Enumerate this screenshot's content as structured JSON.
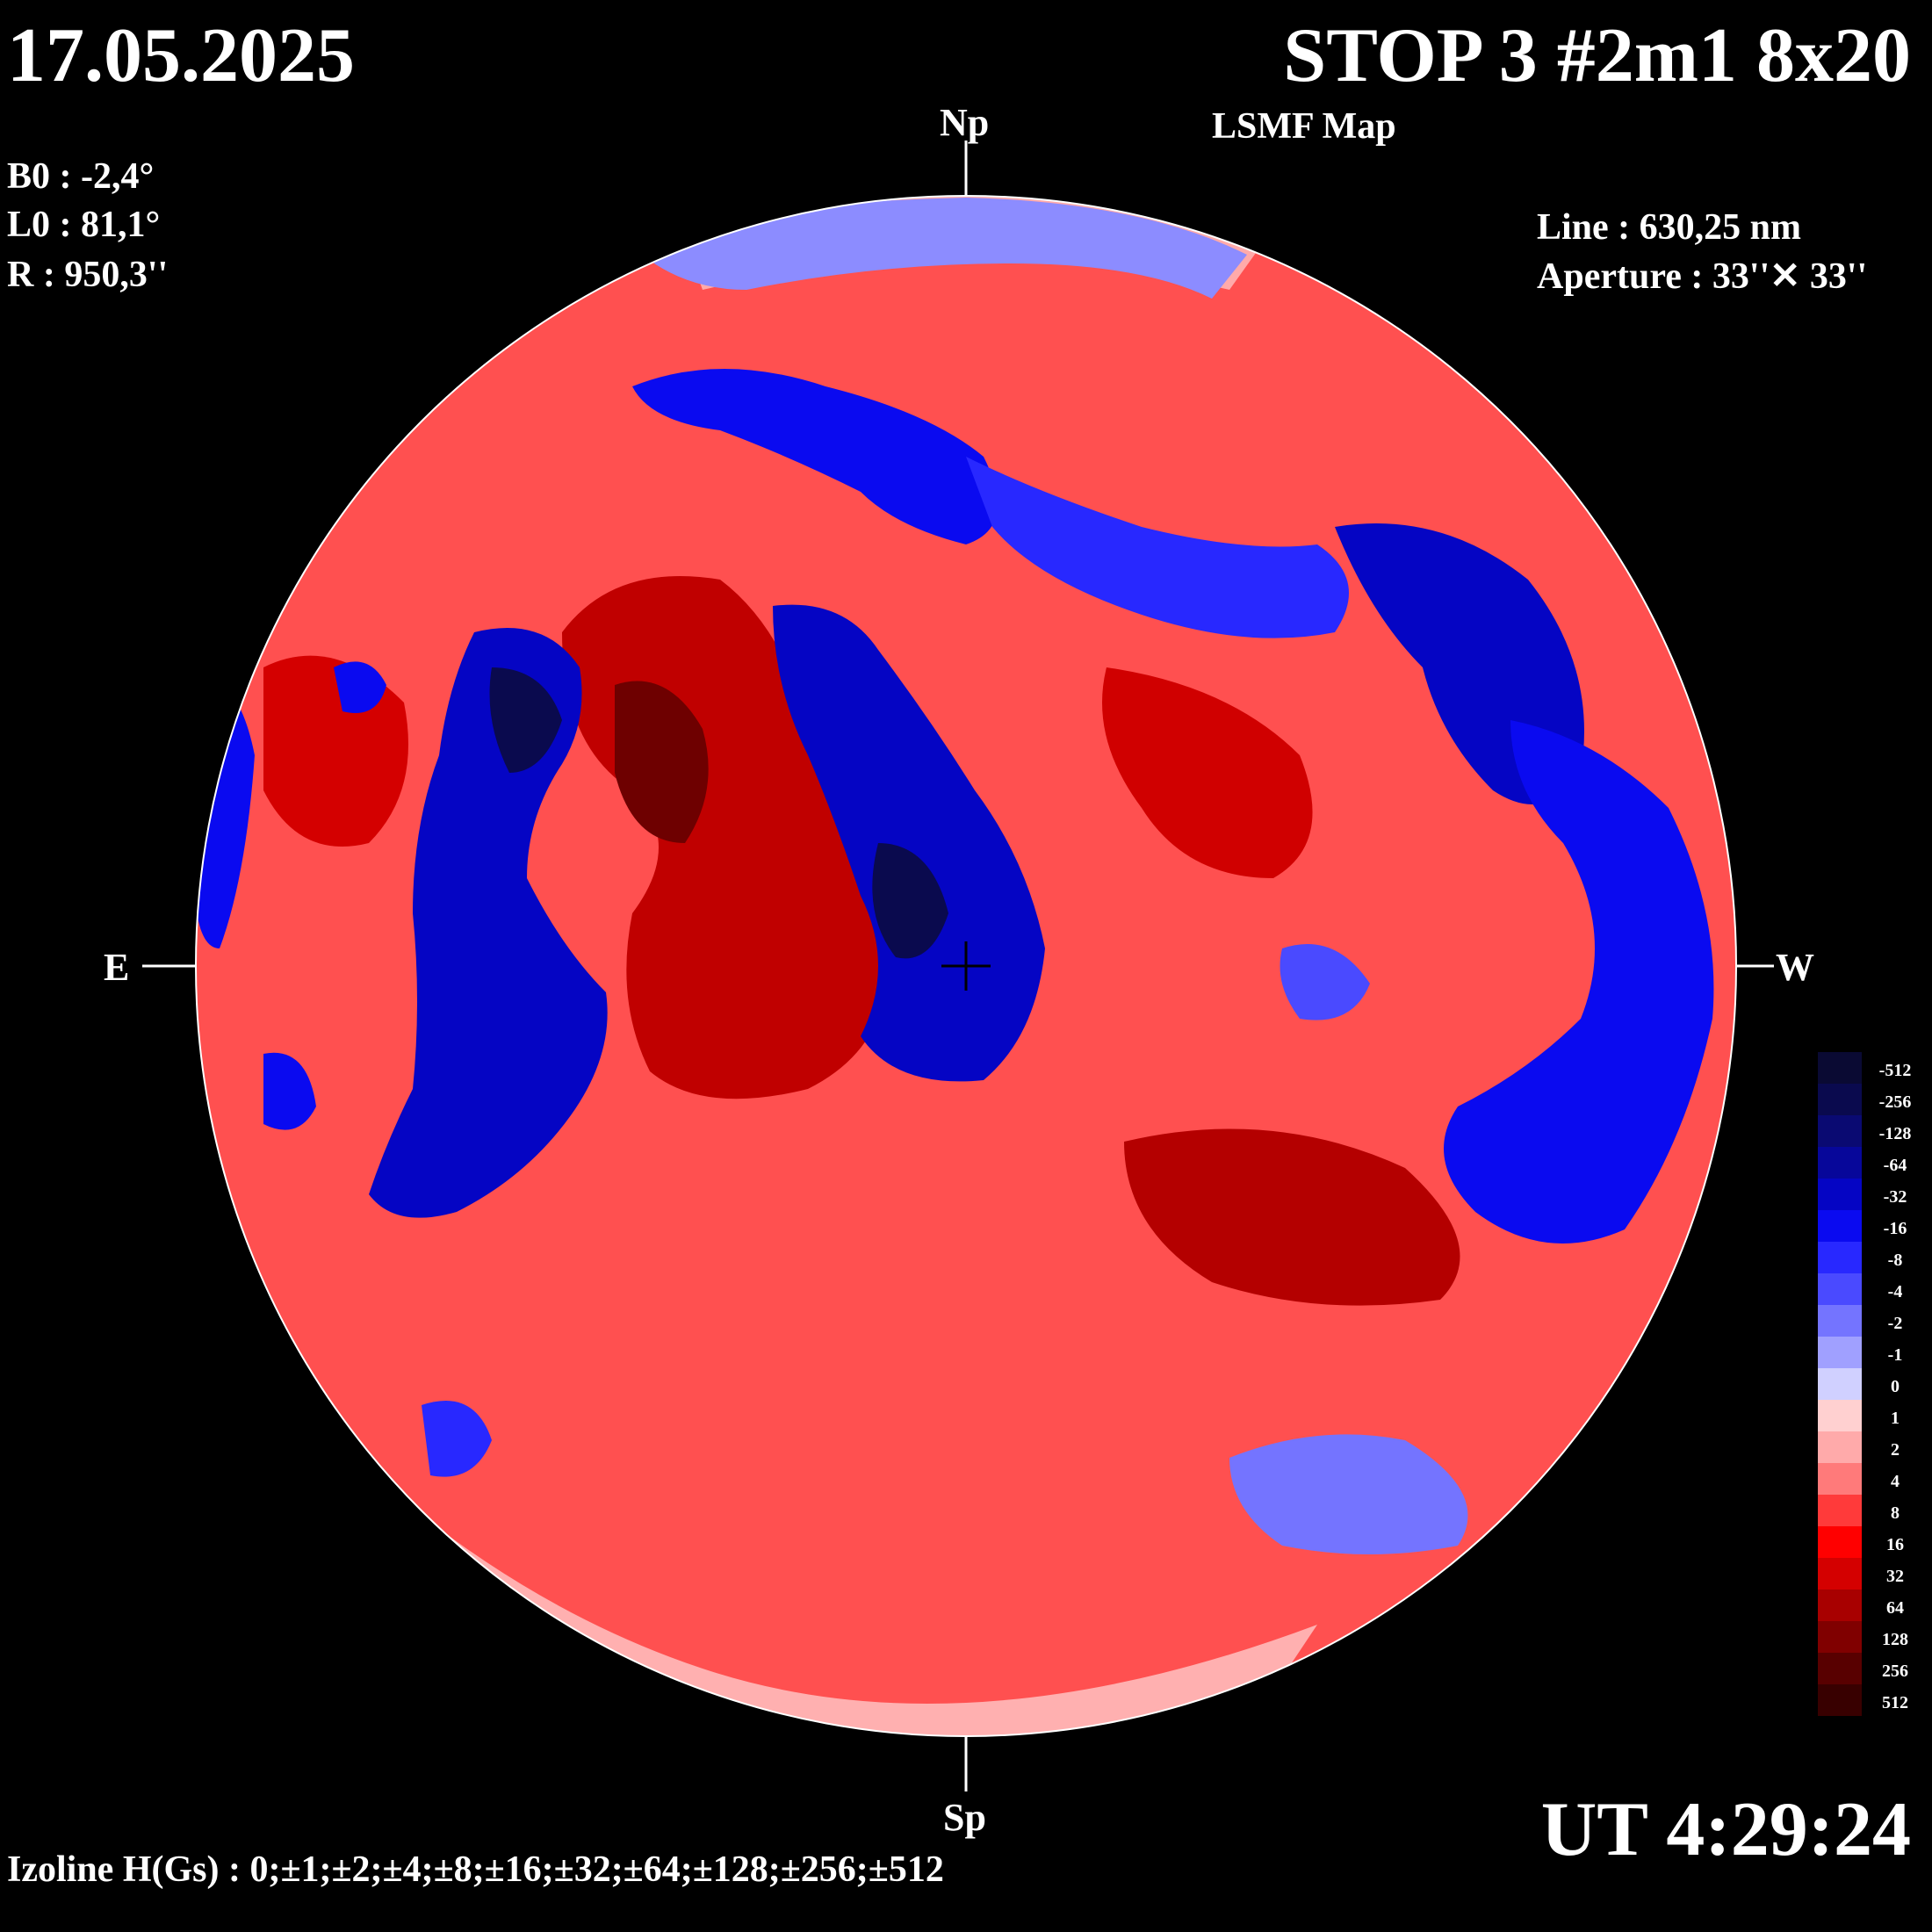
{
  "header": {
    "date": "17.05.2025",
    "title": "STOP 3 #2m1 8x20",
    "subtitle": "LSMF  Map",
    "ut": "UT 4:29:24"
  },
  "params": {
    "b0": "B0 : -2,4°",
    "l0": "L0 : 81,1°",
    "r": "R  : 950,3''",
    "line": "Line :  630,25 nm",
    "aperture": "Aperture : 33''✕ 33''"
  },
  "directions": {
    "north": "Np",
    "south": "Sp",
    "east": "E",
    "west": "W"
  },
  "footer": {
    "izoline": "Izoline H(Gs) : 0;±1;±2;±4;±8;±16;±32;±64;±128;±256;±512"
  },
  "legend": {
    "labels": [
      "-512",
      "-256",
      "-128",
      "-64",
      "-32",
      "-16",
      "-8",
      "-4",
      "-2",
      "-1",
      "0",
      "1",
      "2",
      "4",
      "8",
      "16",
      "32",
      "64",
      "128",
      "256",
      "512"
    ],
    "colors": [
      "#0a0a33",
      "#0a0a4e",
      "#0a0a72",
      "#07079a",
      "#0505c4",
      "#0a0af0",
      "#2828ff",
      "#4a4aff",
      "#7474ff",
      "#a0a0ff",
      "#d0d0ff",
      "#ffd0d0",
      "#ffaaaa",
      "#ff7a7a",
      "#ff3a3a",
      "#ff0000",
      "#d40000",
      "#a80000",
      "#800000",
      "#580000",
      "#380000"
    ]
  },
  "map": {
    "positive_color": "#ff2a2a",
    "negative_color": "#1a1aff"
  }
}
